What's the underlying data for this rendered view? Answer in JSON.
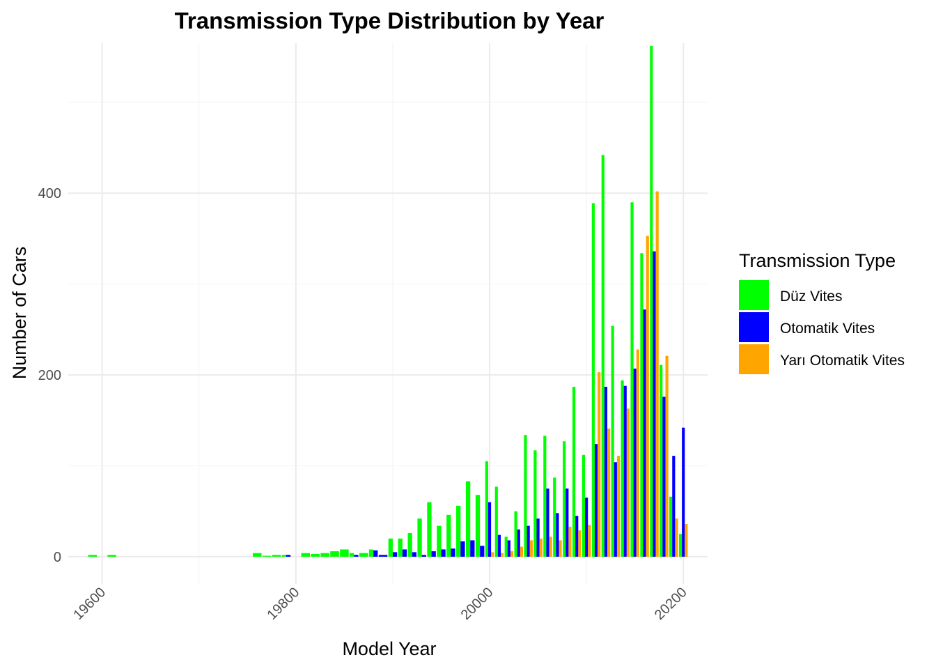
{
  "chart_data": {
    "type": "bar",
    "title": "Transmission Type Distribution by Year",
    "xlabel": "Model Year",
    "ylabel": "Number of Cars",
    "xlim": [
      1956.5,
      2022.5
    ],
    "ylim": [
      -30,
      565
    ],
    "x_ticks": [
      1960,
      1980,
      2000,
      2020
    ],
    "x_tick_labels": [
      "19600",
      "19800",
      "20000",
      "20200"
    ],
    "y_ticks": [
      0,
      200,
      400
    ],
    "y_tick_labels": [
      "0",
      "200",
      "400"
    ],
    "grid": true,
    "legend": {
      "title": "Transmission Type",
      "position": "right"
    },
    "series": [
      {
        "name": "Düz Vites",
        "color": "#00FF00",
        "points": [
          [
            1959,
            2
          ],
          [
            1961,
            2
          ],
          [
            1976,
            4
          ],
          [
            1977,
            1
          ],
          [
            1978,
            2
          ],
          [
            1979,
            2
          ],
          [
            1981,
            4
          ],
          [
            1982,
            3
          ],
          [
            1983,
            4
          ],
          [
            1984,
            6
          ],
          [
            1985,
            8
          ],
          [
            1986,
            4
          ],
          [
            1987,
            4
          ],
          [
            1988,
            8
          ],
          [
            1990,
            20
          ],
          [
            1991,
            20
          ],
          [
            1992,
            26
          ],
          [
            1993,
            42
          ],
          [
            1994,
            60
          ],
          [
            1995,
            34
          ],
          [
            1996,
            46
          ],
          [
            1997,
            56
          ],
          [
            1998,
            83
          ],
          [
            1999,
            68
          ],
          [
            2000,
            105
          ],
          [
            2001,
            77
          ],
          [
            2002,
            22
          ],
          [
            2003,
            50
          ],
          [
            2004,
            134
          ],
          [
            2005,
            117
          ],
          [
            2006,
            133
          ],
          [
            2007,
            87
          ],
          [
            2008,
            127
          ],
          [
            2009,
            187
          ],
          [
            2010,
            112
          ],
          [
            2011,
            389
          ],
          [
            2012,
            442
          ],
          [
            2013,
            254
          ],
          [
            2014,
            194
          ],
          [
            2015,
            390
          ],
          [
            2016,
            334
          ],
          [
            2017,
            562
          ],
          [
            2018,
            211
          ],
          [
            2019,
            66
          ],
          [
            2020,
            25
          ]
        ]
      },
      {
        "name": "Otomatik Vites",
        "color": "#0000FF",
        "points": [
          [
            1979,
            2
          ],
          [
            1986,
            2
          ],
          [
            1988,
            7
          ],
          [
            1989,
            2
          ],
          [
            1990,
            5
          ],
          [
            1991,
            8
          ],
          [
            1992,
            5
          ],
          [
            1993,
            2
          ],
          [
            1994,
            6
          ],
          [
            1995,
            8
          ],
          [
            1996,
            9
          ],
          [
            1997,
            17
          ],
          [
            1998,
            18
          ],
          [
            1999,
            12
          ],
          [
            2000,
            60
          ],
          [
            2001,
            24
          ],
          [
            2002,
            18
          ],
          [
            2003,
            30
          ],
          [
            2004,
            34
          ],
          [
            2005,
            42
          ],
          [
            2006,
            75
          ],
          [
            2007,
            48
          ],
          [
            2008,
            75
          ],
          [
            2009,
            45
          ],
          [
            2010,
            65
          ],
          [
            2011,
            124
          ],
          [
            2012,
            187
          ],
          [
            2013,
            104
          ],
          [
            2014,
            188
          ],
          [
            2015,
            207
          ],
          [
            2016,
            272
          ],
          [
            2017,
            336
          ],
          [
            2018,
            176
          ],
          [
            2019,
            111
          ],
          [
            2020,
            142
          ]
        ]
      },
      {
        "name": "Yarı Otomatik Vites",
        "color": "#FFA500",
        "points": [
          [
            2000,
            5
          ],
          [
            2001,
            4
          ],
          [
            2002,
            6
          ],
          [
            2003,
            11
          ],
          [
            2004,
            18
          ],
          [
            2005,
            20
          ],
          [
            2006,
            22
          ],
          [
            2007,
            18
          ],
          [
            2008,
            33
          ],
          [
            2009,
            29
          ],
          [
            2010,
            35
          ],
          [
            2011,
            203
          ],
          [
            2012,
            141
          ],
          [
            2013,
            111
          ],
          [
            2014,
            163
          ],
          [
            2015,
            228
          ],
          [
            2016,
            353
          ],
          [
            2017,
            402
          ],
          [
            2018,
            221
          ],
          [
            2019,
            42
          ],
          [
            2020,
            36
          ]
        ]
      }
    ]
  }
}
